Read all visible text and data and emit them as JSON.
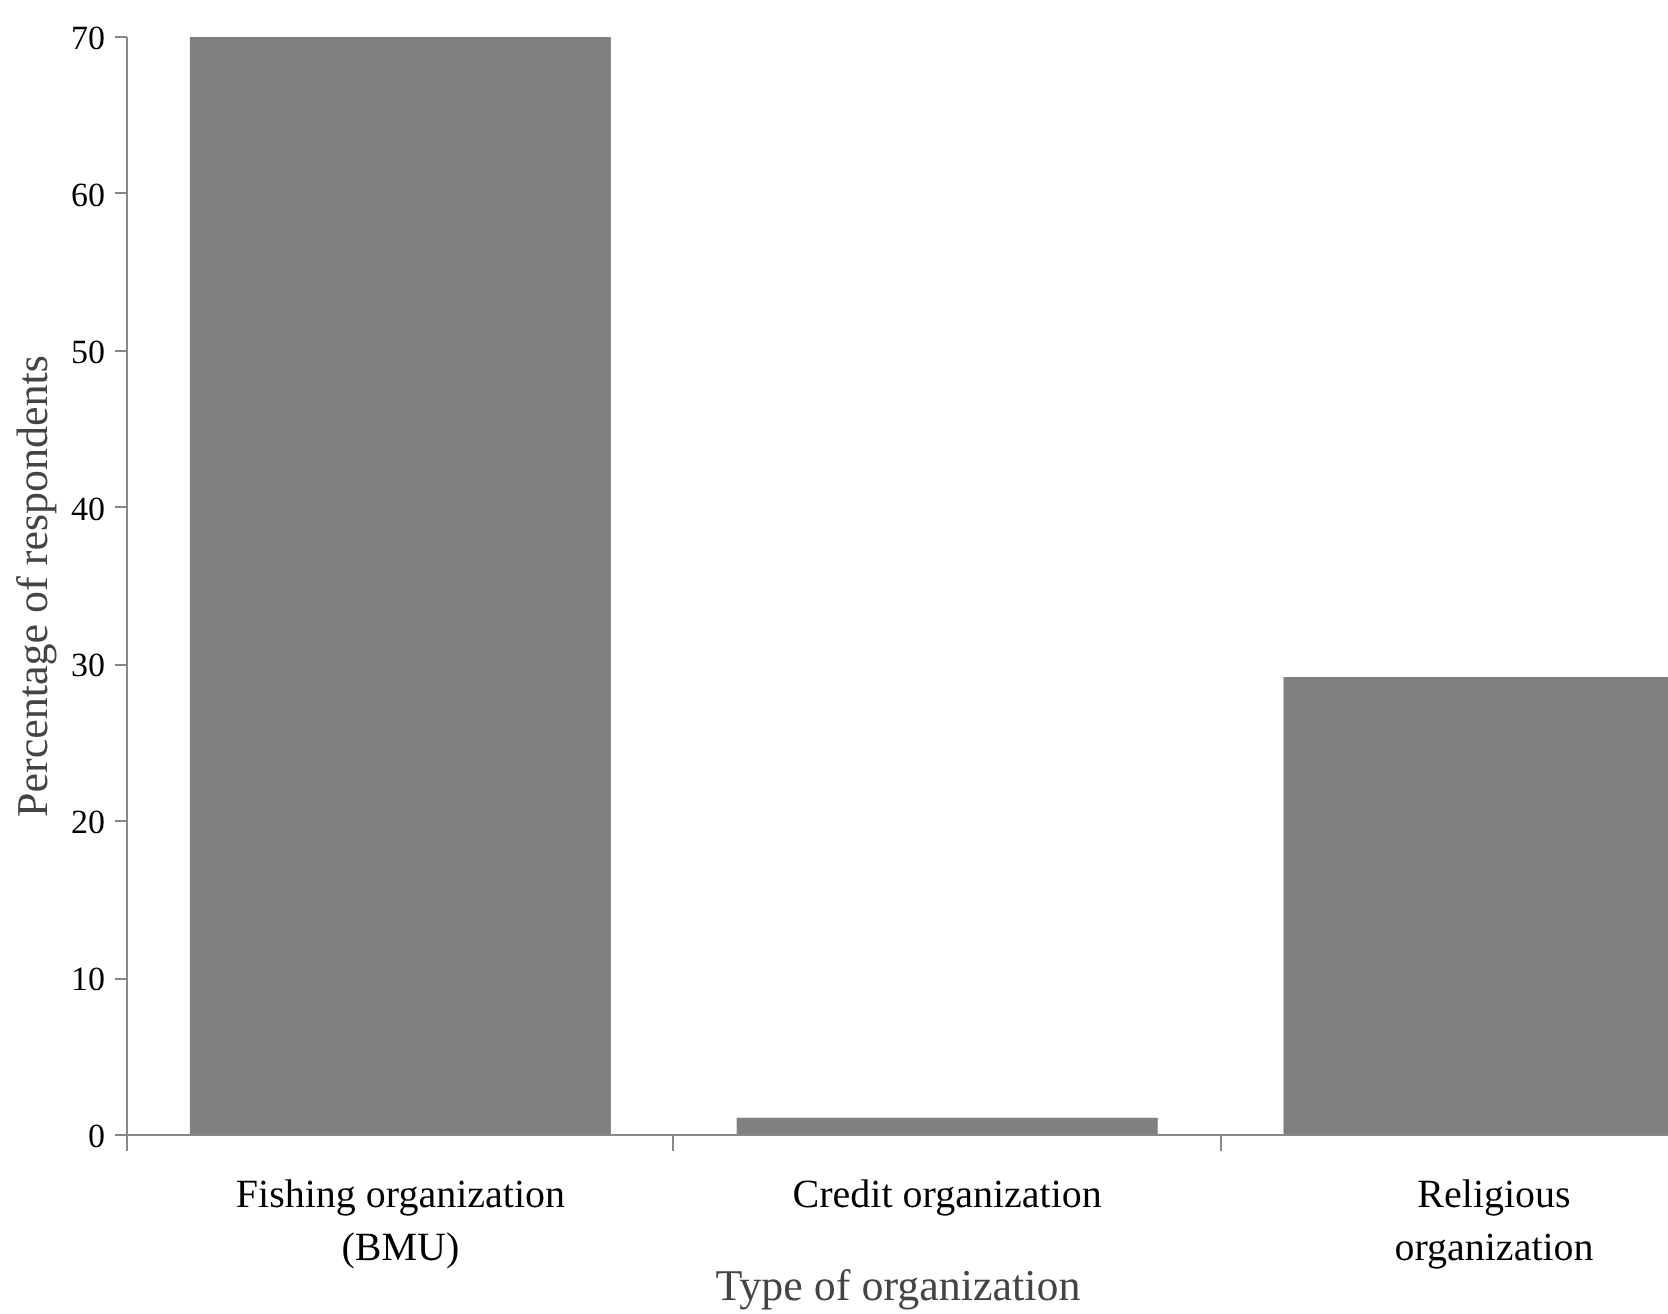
{
  "chart_data": {
    "type": "bar",
    "xlabel": "Type of organization",
    "ylabel": "Percentage of respondents",
    "categories": [
      "Fishing organization\n(BMU)",
      "Credit organization",
      "Religious\norganization"
    ],
    "values": [
      70,
      1.1,
      29.2
    ],
    "color": "#808080",
    "ylim": [
      0,
      70
    ],
    "yticks": [
      0,
      10,
      20,
      30,
      40,
      50,
      60,
      70
    ],
    "grid": false
  }
}
